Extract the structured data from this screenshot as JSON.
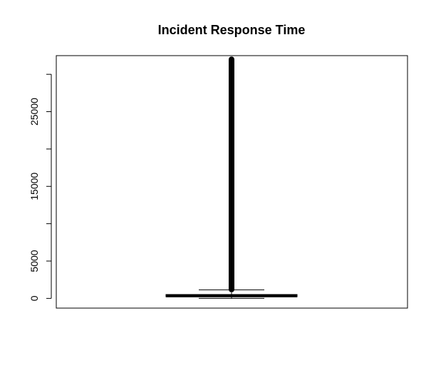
{
  "chart_data": {
    "type": "boxplot",
    "title": "Incident Response Time",
    "xlabel": "",
    "ylabel": "",
    "ylim": [
      -1300,
      32500
    ],
    "y_ticks": [
      0,
      5000,
      10000,
      15000,
      20000,
      25000,
      30000
    ],
    "y_tick_labels": [
      "0",
      "5000",
      "",
      "15000",
      "",
      "25000",
      ""
    ],
    "box": {
      "min": 0,
      "q1": 220,
      "median": 350,
      "q3": 520,
      "whisker_low": 0,
      "whisker_high": 1150
    },
    "outliers": {
      "from": 1200,
      "to": 32000
    },
    "colors": {
      "ink": "#000000",
      "background": "#ffffff"
    }
  }
}
